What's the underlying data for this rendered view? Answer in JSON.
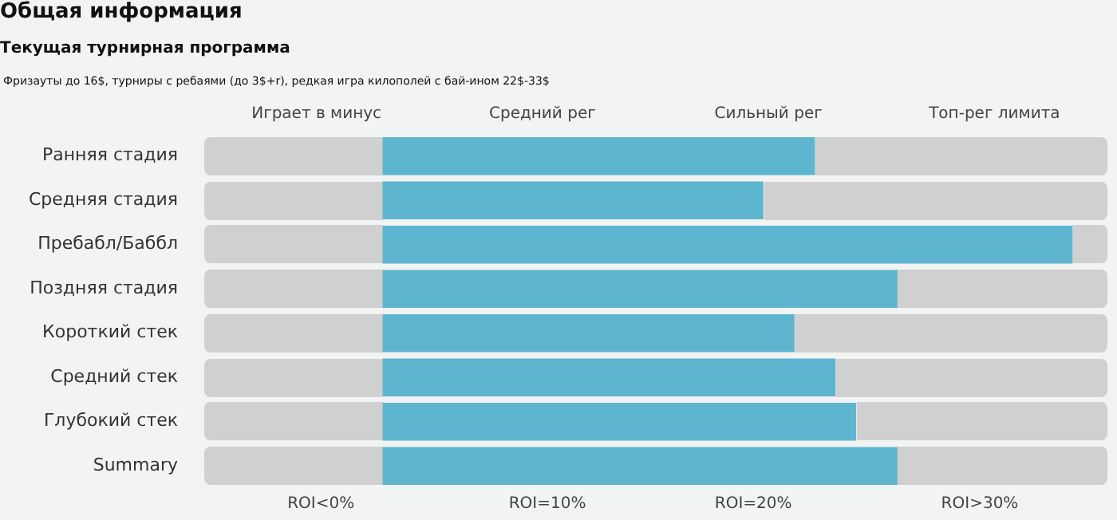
{
  "chart_data": {
    "type": "bar",
    "orientation": "horizontal",
    "title": "Общая информация",
    "subtitle": "Текущая турнирная программа",
    "annotations": [
      "Фризауты до 16$, турниры с ребаями (до 3$+r), редкая игра килополей с бай-ином 22$-33$",
      "Играет в минус",
      "Средний рег",
      "Сильный рег",
      "Топ-рег лимита"
    ],
    "categories": [
      "Ранняя стадия",
      "Средняя стадия",
      "Пребабл/Баббл",
      "Поздняя стадия",
      "Короткий стек",
      "Средний стек",
      "Глубокий стек",
      "Summary"
    ],
    "base": [
      2,
      2,
      2,
      2,
      2,
      2,
      2,
      2
    ],
    "values": [
      21,
      18.5,
      33.5,
      25,
      20,
      22,
      23,
      25
    ],
    "color": "#5eb5cf",
    "xlim": [
      -6.7,
      37.2
    ],
    "xticks": [
      {
        "value": -1,
        "label": "ROI<0%"
      },
      {
        "value": 10,
        "label": "ROI=10%"
      },
      {
        "value": 20,
        "label": "ROI=20%"
      },
      {
        "value": 31,
        "label": "ROI>30%"
      }
    ],
    "legend": false,
    "grid": false
  }
}
